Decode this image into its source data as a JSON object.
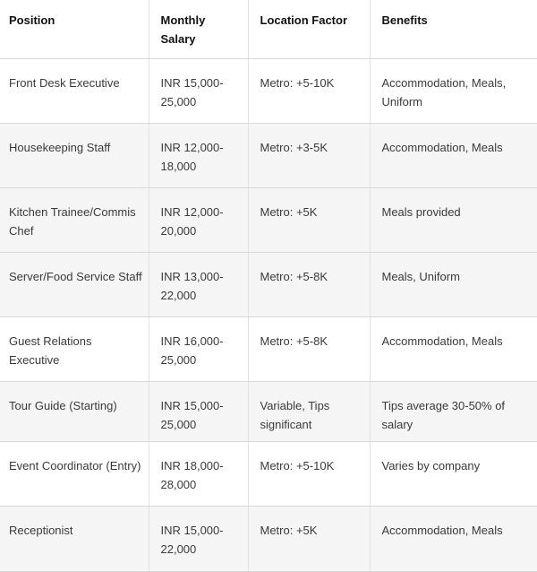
{
  "table": {
    "columns": [
      {
        "label": "Position"
      },
      {
        "label": "Monthly Salary"
      },
      {
        "label": "Location Factor"
      },
      {
        "label": "Benefits"
      }
    ],
    "rows": [
      {
        "position": "Front Desk Executive",
        "salary": "INR 15,000-25,000",
        "location": "Metro: +5-10K",
        "benefits": "Accommodation, Meals, Uniform",
        "shaded": false
      },
      {
        "position": "Housekeeping Staff",
        "salary": "INR 12,000-18,000",
        "location": "Metro: +3-5K",
        "benefits": "Accommodation, Meals",
        "shaded": true
      },
      {
        "position": "Kitchen Trainee/Commis Chef",
        "salary": "INR 12,000-20,000",
        "location": "Metro: +5K",
        "benefits": "Meals provided",
        "shaded": true
      },
      {
        "position": "Server/Food Service Staff",
        "salary": "INR 13,000-22,000",
        "location": "Metro: +5-8K",
        "benefits": "Meals, Uniform",
        "shaded": true
      },
      {
        "position": "Guest Relations Executive",
        "salary": "INR 16,000-25,000",
        "location": "Metro: +5-8K",
        "benefits": "Accommodation, Meals",
        "shaded": false
      },
      {
        "position": "Tour Guide (Starting)",
        "salary": "INR 15,000-25,000",
        "location": "Variable, Tips significant",
        "benefits": "Tips average 30-50% of salary",
        "shaded": true
      },
      {
        "position": "Event Coordinator (Entry)",
        "salary": "INR 18,000-28,000",
        "location": "Metro: +5-10K",
        "benefits": "Varies by company",
        "shaded": false
      },
      {
        "position": "Receptionist",
        "salary": "INR 15,000-22,000",
        "location": "Metro: +5K",
        "benefits": "Accommodation, Meals",
        "shaded": true
      }
    ],
    "colors": {
      "stripe_bg": "#f5f5f5",
      "row_bg": "#ffffff",
      "horizontal_border": "#d8d8d8",
      "vertical_border": "#e2e2e2",
      "header_text": "#111111",
      "body_text": "#3a3a3a"
    }
  }
}
